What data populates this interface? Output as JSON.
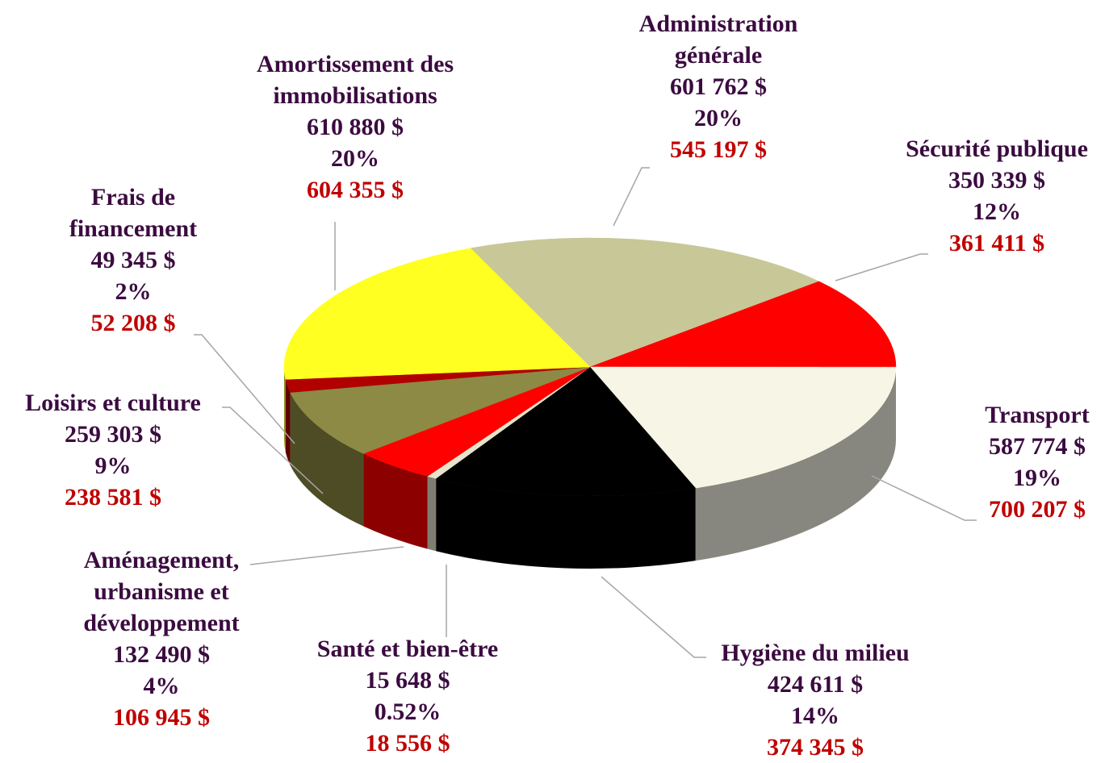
{
  "chart_data": {
    "type": "pie3d",
    "categories": [
      "Administration générale",
      "Sécurité publique",
      "Transport",
      "Hygiène du milieu",
      "Santé et bien-être",
      "Aménagement, urbanisme et développement",
      "Loisirs et culture",
      "Frais de financement",
      "Amortissement des immobilisations"
    ],
    "values": [
      601762,
      350339,
      587774,
      424611,
      15648,
      132490,
      259303,
      49345,
      610880
    ],
    "value_labels": [
      "601 762  $",
      "350 339  $",
      "587 774  $",
      "424 611  $",
      "15 648  $",
      "132 490  $",
      "259 303  $",
      "49 345  $",
      "610 880  $"
    ],
    "percentages": [
      "20%",
      "12%",
      "19%",
      "14%",
      "0.52%",
      "4%",
      "9%",
      "2%",
      "20%"
    ],
    "previous_values": [
      "545 197  $",
      "361 411  $",
      "700 207  $",
      "374 345  $",
      "18 556  $",
      "106 945  $",
      "238 581  $",
      "52 208  $",
      "604 355 $"
    ],
    "colors": [
      "#c8c797",
      "#ff0000",
      "#f7f5e6",
      "#000000",
      "#e6e4cc",
      "#ff0000",
      "#8c8a44",
      "#b00000",
      "#ffff22"
    ]
  }
}
